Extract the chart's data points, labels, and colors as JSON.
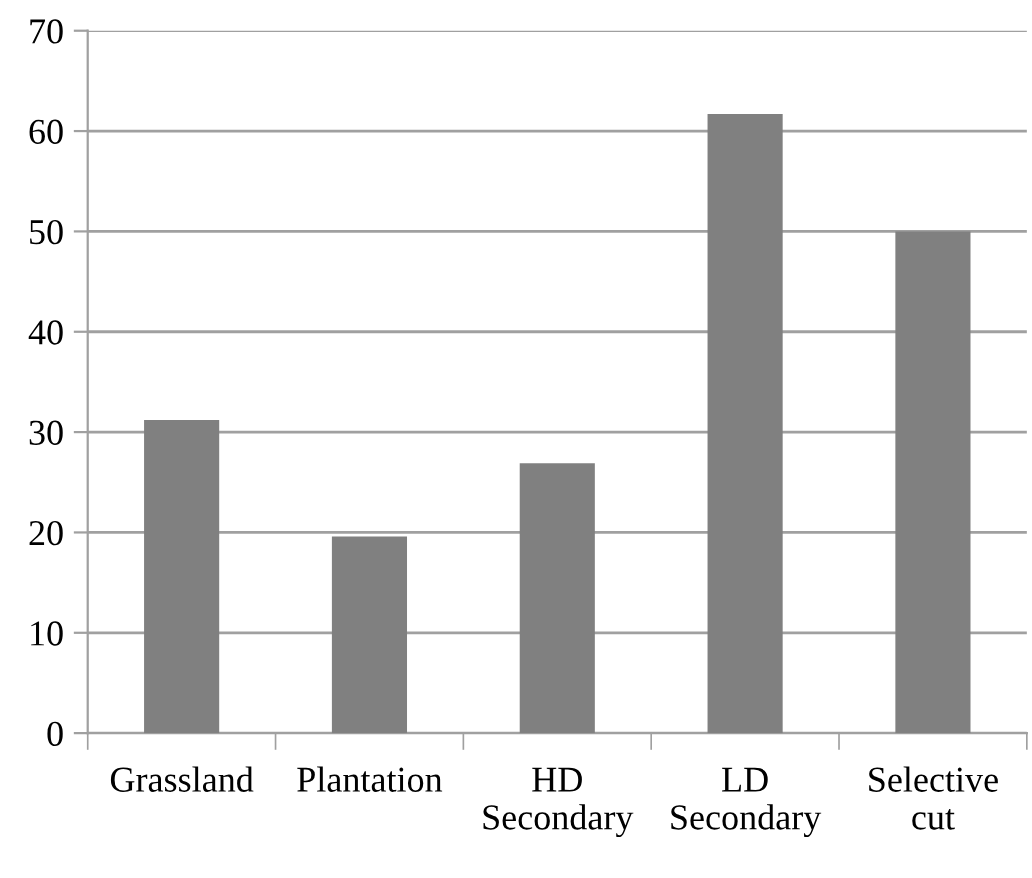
{
  "chart_data": {
    "type": "bar",
    "categories": [
      "Grassland",
      "Plantation",
      "HD\nSecondary",
      "LD\nSecondary",
      "Selective\ncut"
    ],
    "values": [
      31.2,
      19.6,
      26.9,
      61.7,
      50.0
    ],
    "color": "#808080",
    "ylim": [
      0,
      70
    ],
    "yticks": [
      0,
      10,
      20,
      30,
      40,
      50,
      60,
      70
    ],
    "grid": "y"
  }
}
